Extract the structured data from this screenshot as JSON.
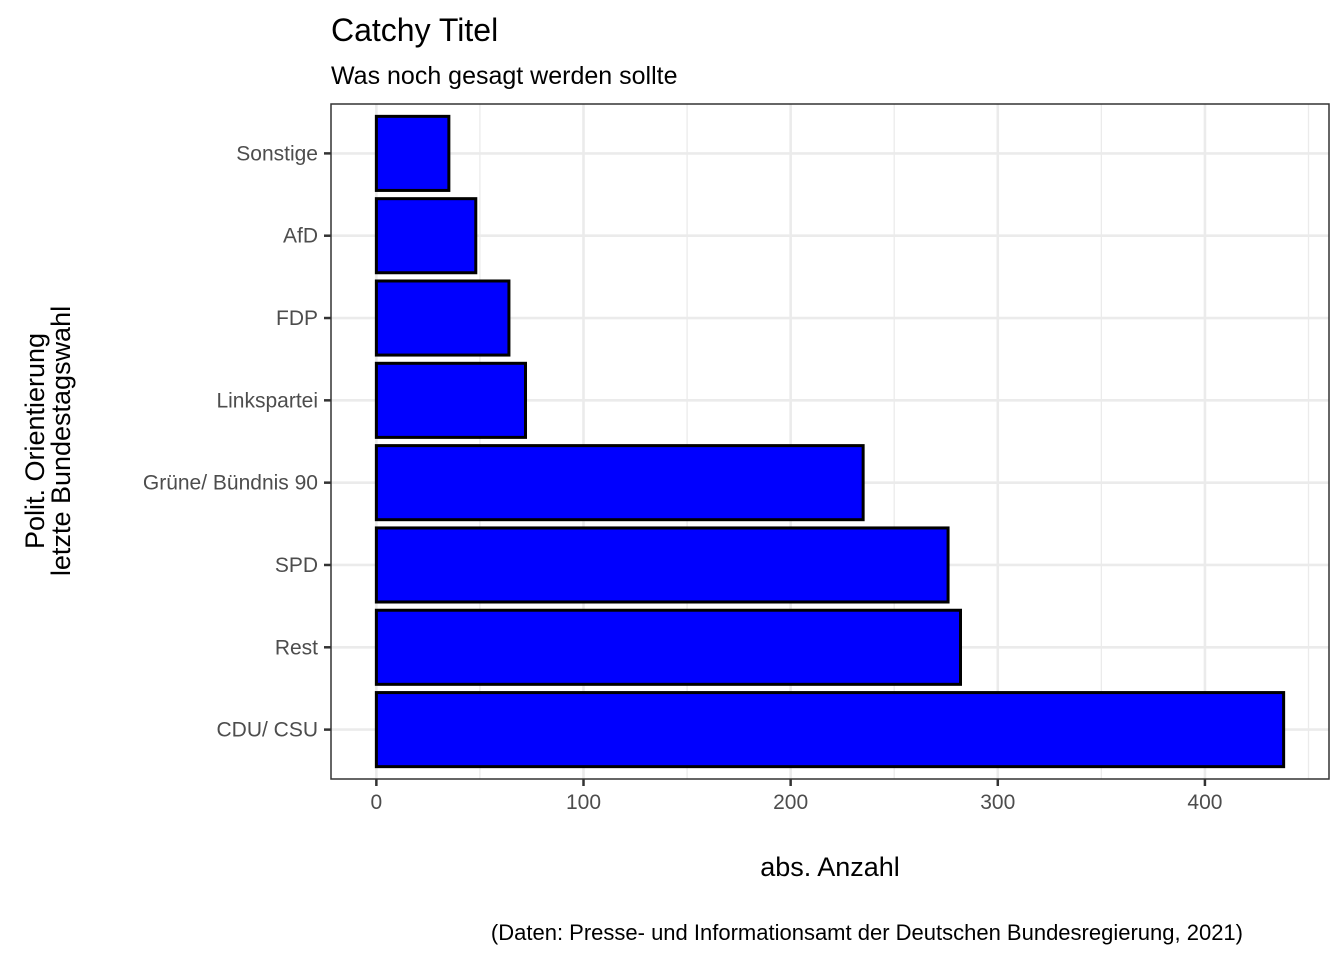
{
  "chart_data": {
    "type": "bar",
    "orientation": "horizontal",
    "title": "Catchy Titel",
    "subtitle": "Was noch gesagt werden sollte",
    "xlabel": "abs. Anzahl",
    "ylabel_lines": [
      "Polit. Orientierung",
      "letzte Bundestagswahl"
    ],
    "caption": "(Daten: Presse- und Informationsamt der Deutschen Bundesregierung, 2021)",
    "categories": [
      "CDU/ CSU",
      "Rest",
      "SPD",
      "Grüne/ Bündnis 90",
      "Linkspartei",
      "FDP",
      "AfD",
      "Sonstige"
    ],
    "values": [
      438,
      282,
      276,
      235,
      72,
      64,
      48,
      35
    ],
    "xlim": [
      -21.9,
      459.9
    ],
    "xticks": [
      0,
      100,
      200,
      300,
      400
    ],
    "grid": true,
    "theme": "bw",
    "bar_fill": "#0000ff",
    "bar_outline": "#000000"
  }
}
